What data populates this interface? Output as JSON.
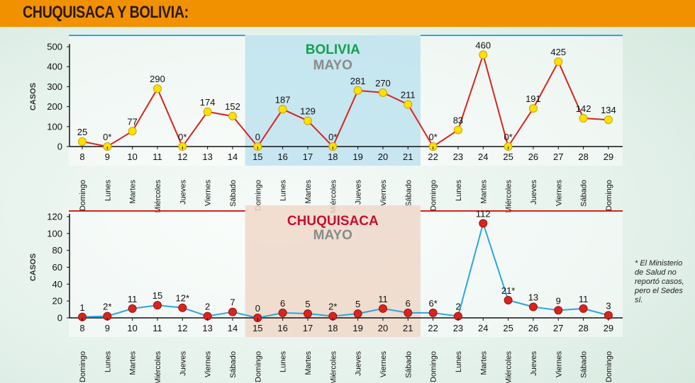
{
  "header": {
    "title": "CHUQUISACA Y BOLIVIA:"
  },
  "note": "* El Ministerio de Salud no reportó casos, pero el Sedes sí.",
  "colors": {
    "header": "#f29100",
    "bolivia_line": "#d7251d",
    "bolivia_marker": "#ffe000",
    "bolivia_title": "#12a24b",
    "bolivia_rule": "#2aa7df",
    "chuquisaca_line": "#2aa7df",
    "chuquisaca_marker": "#d7251d",
    "chuquisaca_title": "#c8102e",
    "chuquisaca_rule": "#d7251d",
    "subtitle": "#8a8a8a",
    "week_band_top": "#bfe3f0",
    "week_band_bottom": "#f0d8ca"
  },
  "chart_data": [
    {
      "type": "line",
      "title": "BOLIVIA",
      "subtitle": "MAYO",
      "ylabel": "CASOS",
      "ylim": [
        0,
        500
      ],
      "yticks": [
        0,
        100,
        200,
        300,
        400,
        500
      ],
      "highlight_range": [
        "15",
        "21"
      ],
      "categories": [
        "8",
        "9",
        "10",
        "11",
        "12",
        "13",
        "14",
        "15",
        "16",
        "17",
        "18",
        "19",
        "20",
        "21",
        "22",
        "23",
        "24",
        "25",
        "26",
        "27",
        "28",
        "29"
      ],
      "weekdays": [
        "Domingo",
        "Lunes",
        "Martes",
        "Miércoles",
        "Jueves",
        "Viernes",
        "Sábado",
        "Domingo",
        "Lunes",
        "Martes",
        "Miércoles",
        "Jueves",
        "Viernes",
        "Sábado",
        "Domingo",
        "Lunes",
        "Martes",
        "Miércoles",
        "Jueves",
        "Viernes",
        "Sábado",
        "Domingo"
      ],
      "values": [
        25,
        0,
        77,
        290,
        0,
        174,
        152,
        0,
        187,
        129,
        0,
        281,
        270,
        211,
        0,
        83,
        460,
        0,
        191,
        425,
        142,
        134
      ],
      "labels": [
        "25",
        "0*",
        "77",
        "290",
        "0*",
        "174",
        "152",
        "0",
        "187",
        "129",
        "0*",
        "281",
        "270",
        "211",
        "0*",
        "83",
        "460",
        "0*",
        "191",
        "425",
        "142",
        "134"
      ]
    },
    {
      "type": "line",
      "title": "CHUQUISACA",
      "subtitle": "MAYO",
      "ylabel": "CASOS",
      "ylim": [
        0,
        120
      ],
      "yticks": [
        0,
        20,
        40,
        60,
        80,
        100,
        120
      ],
      "highlight_range": [
        "15",
        "21"
      ],
      "categories": [
        "8",
        "9",
        "10",
        "11",
        "12",
        "13",
        "14",
        "15",
        "16",
        "17",
        "18",
        "19",
        "20",
        "21",
        "22",
        "23",
        "24",
        "25",
        "26",
        "27",
        "28",
        "29"
      ],
      "weekdays": [
        "Domingo",
        "Lunes",
        "Martes",
        "Miércoles",
        "Jueves",
        "Viernes",
        "Sábado",
        "Domingo",
        "Lunes",
        "Martes",
        "Miércoles",
        "Jueves",
        "Viernes",
        "Sábado",
        "Domingo",
        "Lunes",
        "Martes",
        "Miércoles",
        "Jueves",
        "Viernes",
        "Sábado",
        "Domingo"
      ],
      "values": [
        1,
        2,
        11,
        15,
        12,
        2,
        7,
        0,
        6,
        5,
        2,
        5,
        11,
        6,
        6,
        2,
        112,
        21,
        13,
        9,
        11,
        3
      ],
      "labels": [
        "1",
        "2*",
        "11",
        "15",
        "12*",
        "2",
        "7",
        "0",
        "6",
        "5",
        "2*",
        "5",
        "11",
        "6",
        "6*",
        "2",
        "112",
        "21*",
        "13",
        "9",
        "11",
        "3"
      ]
    }
  ]
}
